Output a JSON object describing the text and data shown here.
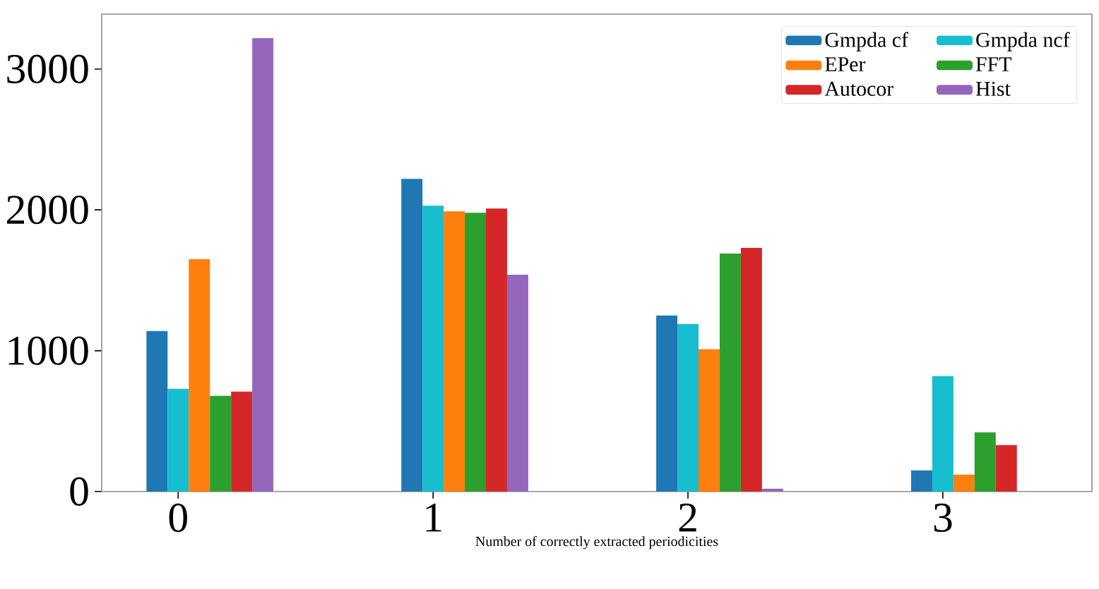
{
  "chart_data": {
    "type": "bar",
    "xlabel": "Number of correctly extracted periodicities",
    "categories": [
      "0",
      "1",
      "2",
      "3"
    ],
    "series": [
      {
        "name": "Gmpda cf",
        "color": "#1f77b4",
        "values": [
          1140,
          2220,
          1250,
          150
        ]
      },
      {
        "name": "Gmpda ncf",
        "color": "#17becf",
        "values": [
          730,
          2030,
          1190,
          820
        ]
      },
      {
        "name": "EPer",
        "color": "#ff7f0e",
        "values": [
          1650,
          1990,
          1010,
          120
        ]
      },
      {
        "name": "FFT",
        "color": "#2ca02c",
        "values": [
          680,
          1980,
          1690,
          420
        ]
      },
      {
        "name": "Autocor",
        "color": "#d62728",
        "values": [
          710,
          2010,
          1730,
          330
        ]
      },
      {
        "name": "Hist",
        "color": "#9467bd",
        "values": [
          3220,
          1540,
          20,
          0
        ]
      }
    ],
    "ylim": [
      0,
      3390
    ],
    "yticks": [
      0,
      1000,
      2000,
      3000
    ],
    "legend": "top right"
  }
}
